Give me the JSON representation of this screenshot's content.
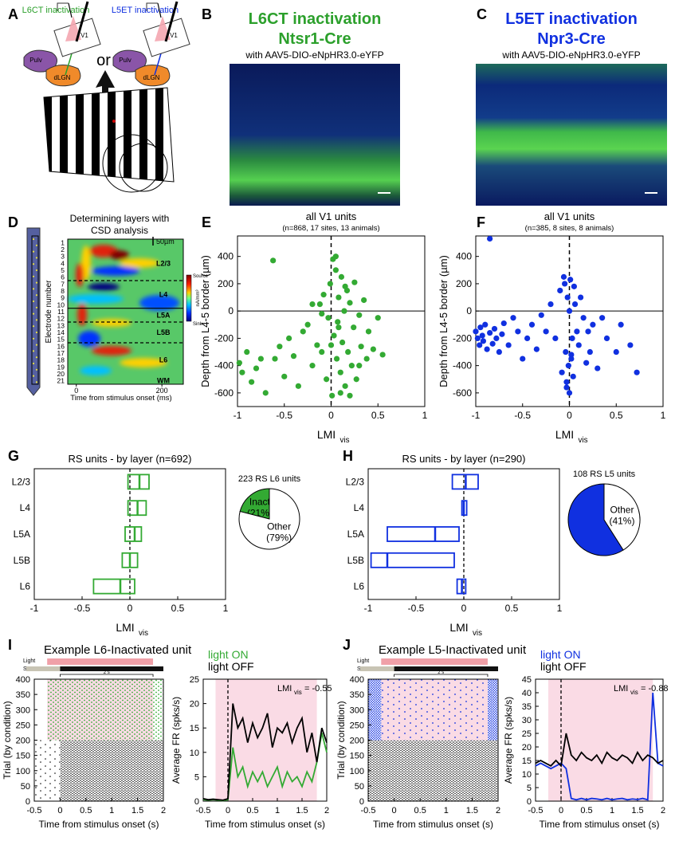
{
  "panel_labels": [
    "A",
    "B",
    "C",
    "D",
    "E",
    "F",
    "G",
    "H",
    "I",
    "J"
  ],
  "schematic": {
    "left_label": "L6CT inactivation",
    "right_label": "L5ET inactivation",
    "or": "or",
    "v1": "V1",
    "pulv": "Pulv",
    "dlgn": "dLGN"
  },
  "histology": [
    {
      "title": "L6CT inactivation",
      "line": "Ntsr1-Cre",
      "virus": "with AAV5-DIO-eNpHR3.0-eYFP",
      "color": "#2ca02c"
    },
    {
      "title": "L5ET inactivation",
      "line": "Npr3-Cre",
      "virus": "with AAV5-DIO-eNpHR3.0-eYFP",
      "color": "#1030e0"
    }
  ],
  "csd": {
    "title": [
      "Determining layers with",
      "CSD analysis"
    ],
    "electrodes": [
      1,
      2,
      3,
      4,
      5,
      6,
      7,
      8,
      9,
      10,
      11,
      12,
      13,
      14,
      15,
      16,
      17,
      18,
      19,
      20,
      21
    ],
    "ylabel": "Electrode number",
    "xlabel": "Time from stimulus onset (ms)",
    "xlim": [
      -20,
      250
    ],
    "xticks": [
      0,
      200
    ],
    "scale_bar": "50µm",
    "layers": [
      "L2/3",
      "L4",
      "L5A",
      "L5B",
      "L6",
      "WM"
    ],
    "colorbar": {
      "top": "Source",
      "bottom": "Sink",
      "unit": "nA/mm³"
    }
  },
  "examples": [
    {
      "title": "Example L6-Inactivated unit",
      "light_label": "Light",
      "screen_label": "Screen",
      "duration_label": "2 s",
      "raster": {
        "ylabel": "Trial (by condition)",
        "xlabel": "Time from stimulus onset (s)",
        "xlim": [
          -0.5,
          2
        ],
        "xticks": [
          -0.5,
          0,
          0.5,
          1,
          1.5,
          2
        ],
        "ylim": [
          0,
          400
        ],
        "yticks": [
          0,
          50,
          100,
          150,
          200,
          250,
          300,
          350,
          400
        ]
      }
    },
    {
      "title": "Example L5-Inactivated unit",
      "light_label": "Light",
      "screen_label": "Screen",
      "duration_label": "2 s",
      "raster": {
        "ylabel": "Trial (by condition)",
        "xlabel": "Time from stimulus onset (s)",
        "xlim": [
          -0.5,
          2
        ],
        "xticks": [
          -0.5,
          0,
          0.5,
          1,
          1.5,
          2
        ],
        "ylim": [
          0,
          400
        ],
        "yticks": [
          0,
          50,
          100,
          150,
          200,
          250,
          300,
          350,
          400
        ]
      }
    }
  ],
  "chart_data": [
    {
      "type": "scatter",
      "title": "all V1 units",
      "subtitle": "(n=868, 17 sites, 13 animals)",
      "xlabel": "LMI",
      "xlabel_sub": "vis",
      "ylabel": "Depth from L4-5 border (µm)",
      "color": "#33aa33",
      "xlim": [
        -1,
        1
      ],
      "xticks": [
        -1,
        -0.5,
        0,
        0.5,
        1
      ],
      "ylim": [
        -700,
        550
      ],
      "yticks": [
        -600,
        -400,
        -200,
        0,
        200,
        400
      ],
      "x": [
        -0.98,
        -0.95,
        -0.9,
        -0.85,
        -0.8,
        -0.75,
        -0.7,
        -0.62,
        -0.55,
        -0.5,
        -0.45,
        -0.4,
        -0.35,
        -0.3,
        -0.25,
        -0.2,
        -0.15,
        -0.12,
        -0.1,
        -0.08,
        -0.05,
        -0.03,
        -0.01,
        0.01,
        0.02,
        0.03,
        0.05,
        0.06,
        0.07,
        0.08,
        0.1,
        0.11,
        0.12,
        0.14,
        0.15,
        0.17,
        0.18,
        0.2,
        0.22,
        0.24,
        0.25,
        0.27,
        0.3,
        0.32,
        0.35,
        0.38,
        0.4,
        0.45,
        0.5,
        0.55,
        -0.6,
        0.05,
        0.1,
        0.15,
        -0.2,
        0.0,
        0.08,
        0.2,
        0.3,
        -0.1
      ],
      "values": [
        -380,
        -450,
        -300,
        -520,
        -420,
        -350,
        -600,
        370,
        -260,
        -480,
        -200,
        -330,
        -550,
        -150,
        -100,
        -400,
        -250,
        50,
        -300,
        120,
        -500,
        -50,
        200,
        -620,
        380,
        -180,
        300,
        -350,
        -80,
        100,
        -450,
        250,
        -230,
        0,
        -550,
        150,
        -300,
        60,
        -400,
        -120,
        210,
        -500,
        -30,
        -260,
        80,
        -350,
        -150,
        -280,
        -50,
        -320,
        -350,
        400,
        -600,
        180,
        50,
        -250,
        -120,
        -620,
        -400,
        -20
      ]
    },
    {
      "type": "scatter",
      "title": "all V1 units",
      "subtitle": "(n=385, 8 sites, 8 animals)",
      "xlabel": "LMI",
      "xlabel_sub": "vis",
      "ylabel": "Depth from L4-5 border (µm)",
      "color": "#1030e0",
      "xlim": [
        -1,
        1
      ],
      "xticks": [
        -1,
        -0.5,
        0,
        0.5,
        1
      ],
      "ylim": [
        -700,
        550
      ],
      "yticks": [
        -600,
        -400,
        -200,
        0,
        200,
        400
      ],
      "x": [
        -1.0,
        -0.98,
        -0.96,
        -0.95,
        -0.93,
        -0.92,
        -0.9,
        -0.88,
        -0.85,
        -0.82,
        -0.8,
        -0.78,
        -0.75,
        -0.72,
        -0.7,
        -0.65,
        -0.6,
        -0.55,
        -0.5,
        -0.45,
        -0.4,
        -0.35,
        -0.3,
        -0.25,
        -0.2,
        -0.15,
        -0.1,
        -0.08,
        -0.05,
        -0.04,
        -0.03,
        -0.02,
        -0.01,
        0.0,
        0.0,
        0.01,
        0.02,
        0.03,
        0.04,
        0.05,
        0.06,
        0.08,
        0.1,
        0.12,
        0.15,
        0.18,
        0.2,
        0.22,
        0.25,
        0.3,
        0.35,
        0.4,
        0.5,
        0.55,
        0.65,
        0.72,
        -0.85,
        -0.03,
        0.02,
        -0.06
      ],
      "values": [
        -150,
        -200,
        -250,
        -120,
        -180,
        -220,
        -100,
        -280,
        -160,
        -240,
        -130,
        -200,
        -300,
        -170,
        -90,
        -250,
        -50,
        -150,
        -350,
        -200,
        -100,
        -280,
        -30,
        -150,
        50,
        -200,
        150,
        -450,
        200,
        -300,
        -520,
        100,
        -400,
        0,
        -600,
        230,
        -350,
        -200,
        -480,
        180,
        50,
        -150,
        -250,
        100,
        -50,
        -380,
        -150,
        -300,
        -100,
        -420,
        -50,
        -200,
        -300,
        -100,
        -250,
        -450,
        530,
        -560,
        -320,
        250
      ]
    },
    {
      "type": "box",
      "title": "RS units - by layer (n=692)",
      "categories": [
        "L2/3",
        "L4",
        "L5A",
        "L5B",
        "L6"
      ],
      "q1": [
        -0.02,
        -0.02,
        -0.05,
        -0.08,
        -0.38
      ],
      "median": [
        0.1,
        0.08,
        0.05,
        0.0,
        -0.1
      ],
      "q3": [
        0.2,
        0.17,
        0.12,
        0.08,
        0.05
      ],
      "color": "#33aa33",
      "xlabel": "LMI",
      "xlabel_sub": "vis",
      "xlim": [
        -1,
        1
      ],
      "xticks": [
        -1,
        -0.5,
        0,
        0.5,
        1
      ]
    },
    {
      "type": "pie",
      "title": "223 RS L6 units",
      "values": [
        21,
        79
      ],
      "labels": [
        "Inact",
        "Other"
      ],
      "value_labels": [
        "(21%)",
        "(79%)"
      ],
      "colors": [
        "#33aa33",
        "#ffffff"
      ]
    },
    {
      "type": "box",
      "title": "RS units - by layer (n=290)",
      "categories": [
        "L2/3",
        "L4",
        "L5A",
        "L5B",
        "L6"
      ],
      "q1": [
        -0.12,
        -0.02,
        -0.8,
        -0.97,
        -0.07
      ],
      "median": [
        0.02,
        0.0,
        -0.3,
        -0.8,
        -0.02
      ],
      "q3": [
        0.15,
        0.03,
        -0.05,
        -0.1,
        0.02
      ],
      "color": "#1030e0",
      "xlabel": "LMI",
      "xlabel_sub": "vis",
      "xlim": [
        -1,
        1
      ],
      "xticks": [
        -1,
        -0.5,
        0,
        0.5,
        1
      ]
    },
    {
      "type": "pie",
      "title": "108 RS L5 units",
      "values": [
        59,
        41
      ],
      "labels": [
        null,
        "Other"
      ],
      "value_labels": [
        null,
        "(41%)"
      ],
      "colors": [
        "#1030e0",
        "#ffffff"
      ]
    },
    {
      "type": "line",
      "xlabel": "Time from stimulus onset (s)",
      "ylabel": "Average FR (spks/s)",
      "x": [
        -0.5,
        -0.4,
        -0.3,
        -0.2,
        -0.1,
        0,
        0.1,
        0.2,
        0.3,
        0.4,
        0.5,
        0.6,
        0.7,
        0.8,
        0.9,
        1,
        1.1,
        1.2,
        1.3,
        1.4,
        1.5,
        1.6,
        1.7,
        1.8,
        1.9,
        2
      ],
      "series": [
        {
          "name": "light ON",
          "color": "#33aa33",
          "values": [
            0.3,
            0.2,
            0.3,
            0.2,
            0.1,
            0.3,
            11,
            5,
            7,
            3,
            6,
            4,
            6,
            3,
            5,
            7,
            3,
            6,
            4,
            5,
            3,
            6,
            4,
            8,
            14,
            10
          ]
        },
        {
          "name": "light OFF",
          "color": "#000000",
          "values": [
            0.5,
            0.3,
            0.4,
            0.3,
            0.2,
            0.5,
            20,
            15,
            17,
            12,
            16,
            13,
            15,
            18,
            11,
            15,
            14,
            16,
            12,
            15,
            17,
            10,
            14,
            8,
            15,
            12
          ]
        }
      ],
      "xlim": [
        -0.5,
        2
      ],
      "xticks": [
        -0.5,
        0,
        0.5,
        1,
        1.5,
        2
      ],
      "ylim": [
        0,
        25
      ],
      "yticks": [
        0,
        5,
        10,
        15,
        20,
        25
      ],
      "light_window": [
        -0.25,
        1.8
      ],
      "annotation": {
        "text": "LMI",
        "sub": "vis",
        "value_label": "= -0.55"
      }
    },
    {
      "type": "line",
      "xlabel": "Time from stimulus onset (s)",
      "ylabel": "Average FR (spks/s)",
      "x": [
        -0.5,
        -0.4,
        -0.3,
        -0.2,
        -0.1,
        0,
        0.1,
        0.2,
        0.3,
        0.4,
        0.5,
        0.6,
        0.7,
        0.8,
        0.9,
        1,
        1.1,
        1.2,
        1.3,
        1.4,
        1.5,
        1.6,
        1.7,
        1.8,
        1.9,
        2
      ],
      "series": [
        {
          "name": "light ON",
          "color": "#1030e0",
          "values": [
            13,
            14,
            13,
            12,
            13,
            14,
            12,
            1,
            0.5,
            1,
            0.5,
            1,
            0.8,
            0.5,
            1,
            0.5,
            0.8,
            1,
            0.5,
            0.8,
            0.6,
            1,
            0.5,
            40,
            14,
            13
          ]
        },
        {
          "name": "light OFF",
          "color": "#000000",
          "values": [
            14,
            15,
            14,
            13,
            15,
            13,
            25,
            17,
            15,
            18,
            16,
            15,
            17,
            14,
            18,
            16,
            15,
            17,
            16,
            14,
            18,
            15,
            17,
            16,
            14,
            15
          ]
        }
      ],
      "xlim": [
        -0.5,
        2
      ],
      "xticks": [
        -0.5,
        0,
        0.5,
        1,
        1.5,
        2
      ],
      "ylim": [
        0,
        45
      ],
      "yticks": [
        0,
        5,
        10,
        15,
        20,
        25,
        30,
        35,
        40,
        45
      ],
      "light_window": [
        -0.25,
        1.8
      ],
      "annotation": {
        "text": "LMI",
        "sub": "vis",
        "value_label": "= -0.88"
      }
    }
  ]
}
